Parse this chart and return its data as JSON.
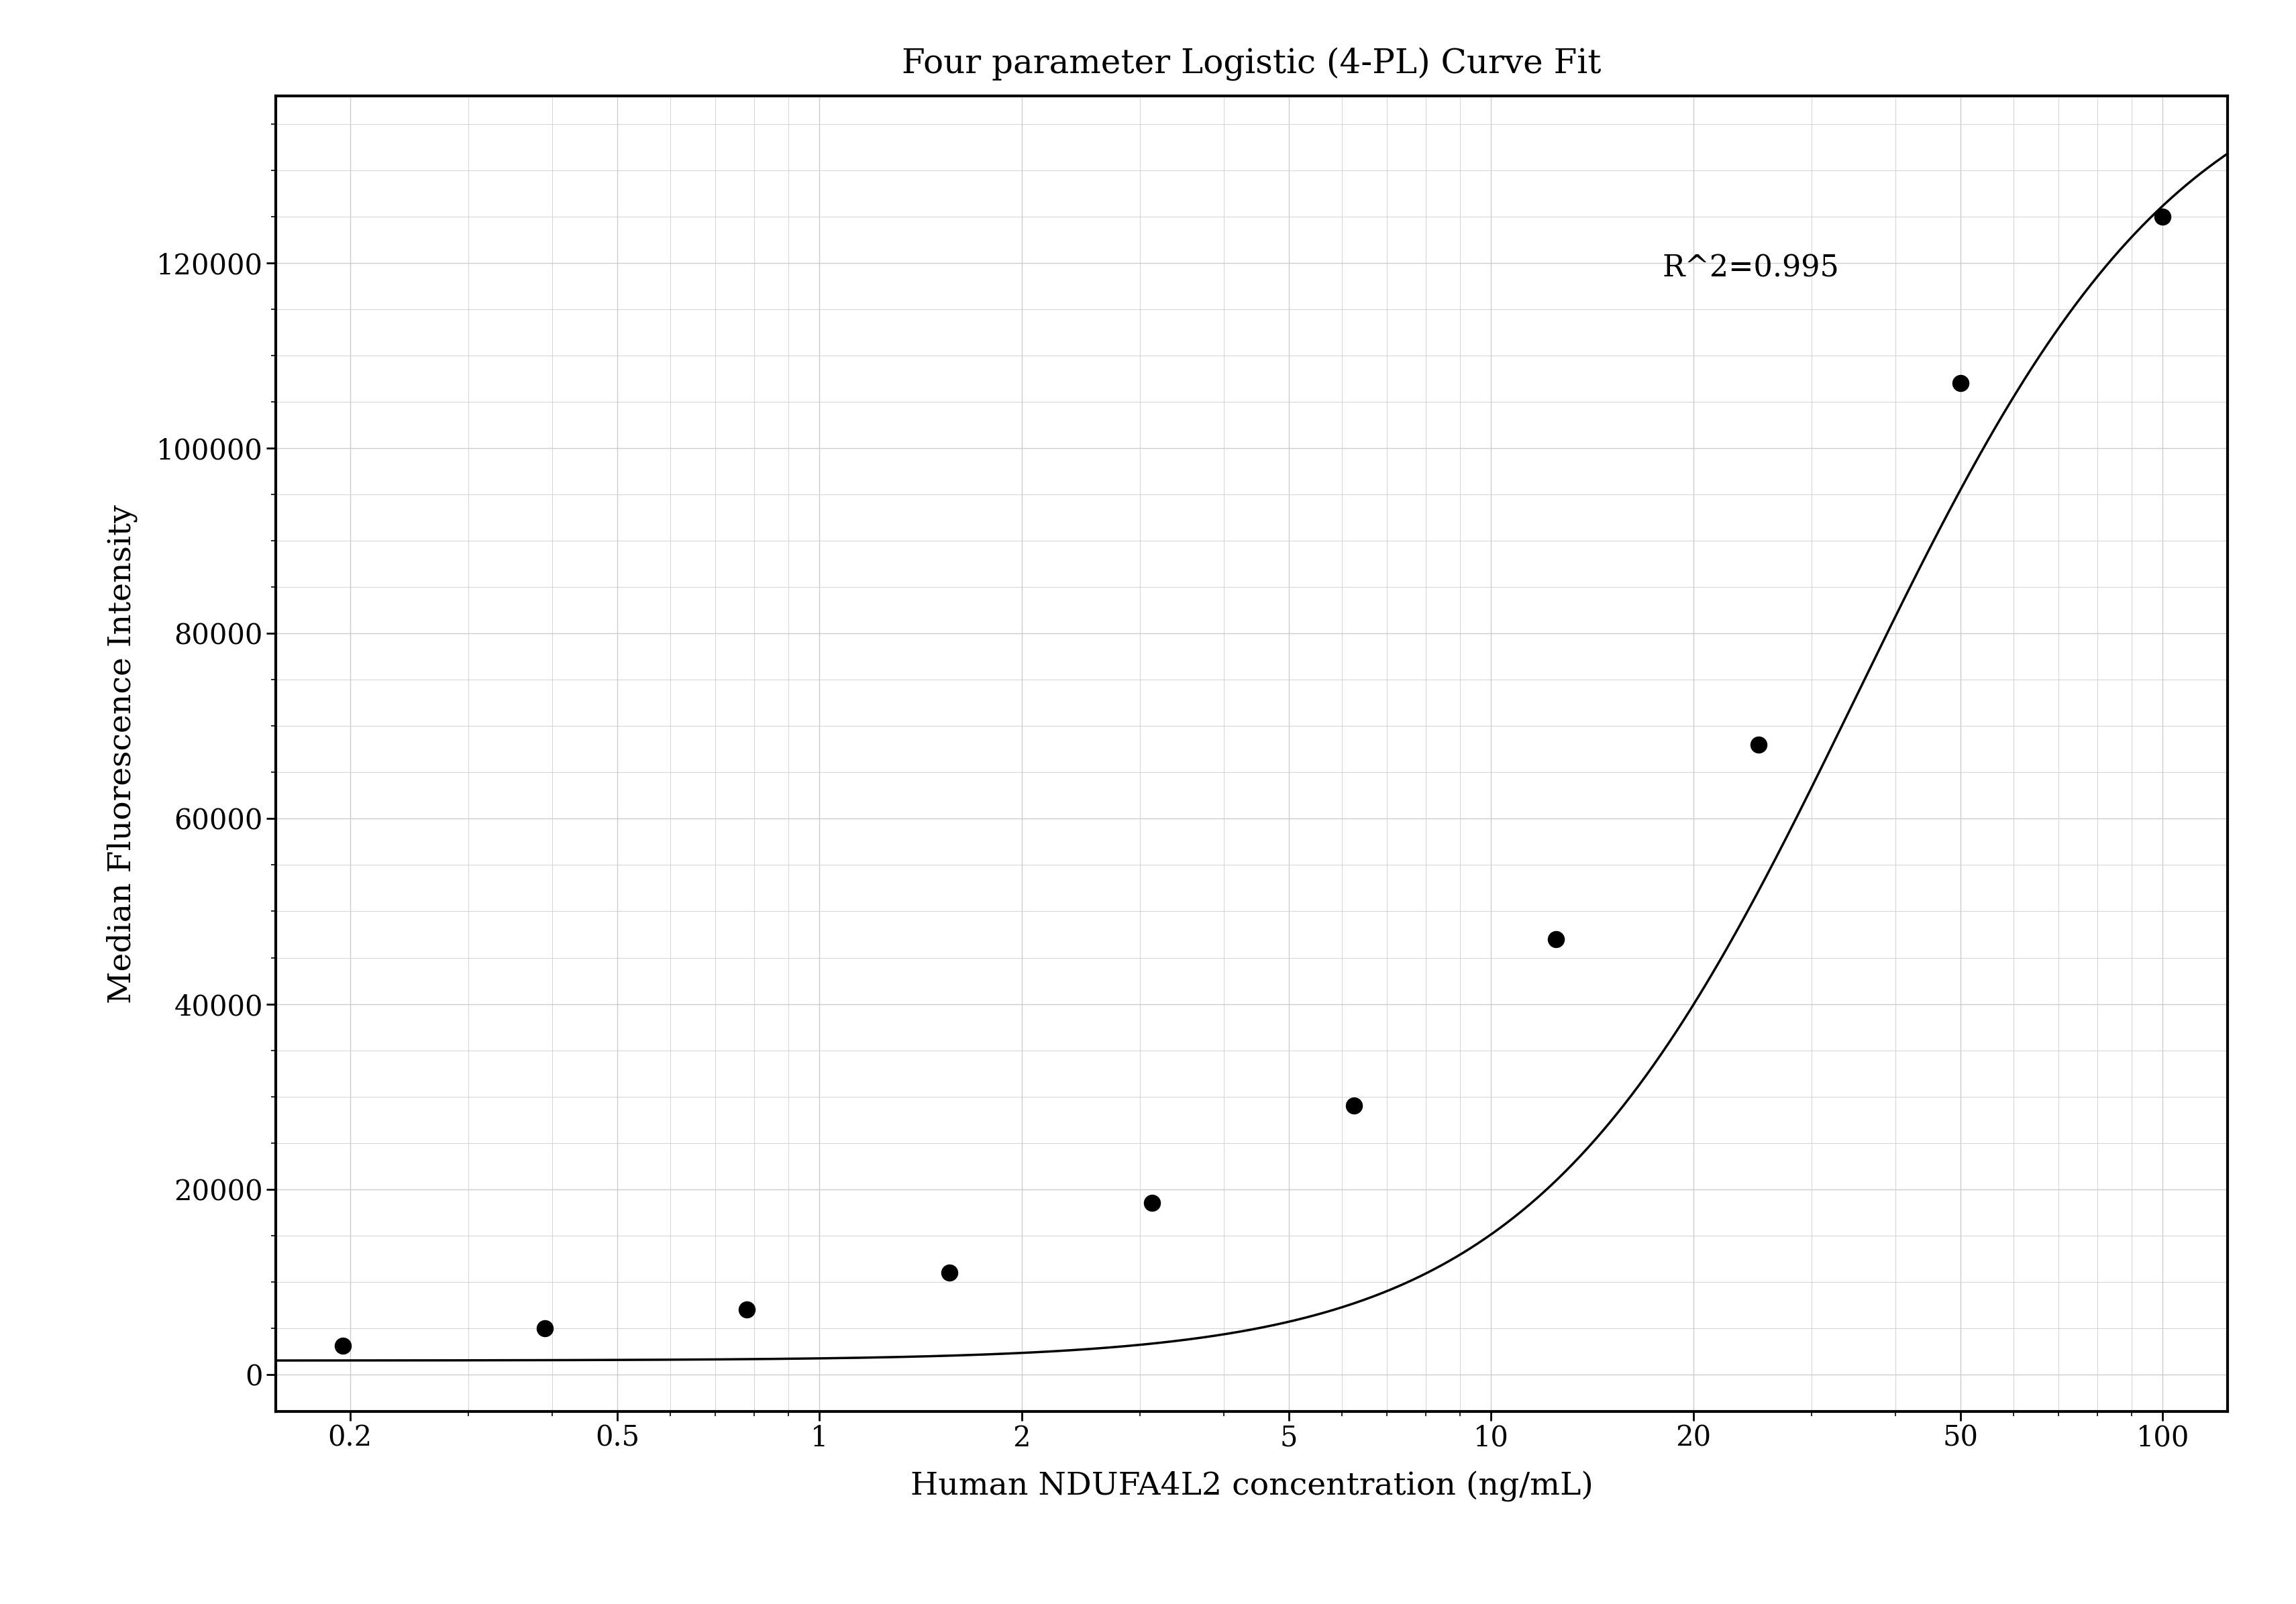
{
  "title": "Four parameter Logistic (4-PL) Curve Fit",
  "xlabel": "Human NDUFA4L2 concentration (ng/mL)",
  "ylabel": "Median Fluorescence Intensity",
  "r_squared": "R^2=0.995",
  "scatter_x": [
    0.195,
    0.39,
    0.78,
    1.56,
    3.125,
    6.25,
    12.5,
    25.0,
    50.0,
    100.0
  ],
  "scatter_y": [
    3100,
    5000,
    7000,
    11000,
    18500,
    29000,
    47000,
    68000,
    107000,
    125000
  ],
  "xmin": 0.155,
  "xmax": 125.0,
  "ymin": -4000,
  "ymax": 138000,
  "yticks": [
    0,
    20000,
    40000,
    60000,
    80000,
    100000,
    120000
  ],
  "xticks": [
    0.2,
    0.5,
    1,
    2,
    5,
    10,
    20,
    50,
    100
  ],
  "xtick_labels": [
    "0.2",
    "0.5",
    "1",
    "2",
    "5",
    "10",
    "20",
    "50",
    "100"
  ],
  "background_color": "#ffffff",
  "grid_color": "#cccccc",
  "line_color": "#000000",
  "scatter_color": "#000000",
  "title_fontsize": 36,
  "label_fontsize": 34,
  "tick_fontsize": 30,
  "annotation_fontsize": 32,
  "r2_x": 18,
  "r2_y": 121000,
  "4pl_A": 1500,
  "4pl_B": 1.8,
  "4pl_C": 35.0,
  "4pl_D": 145000
}
